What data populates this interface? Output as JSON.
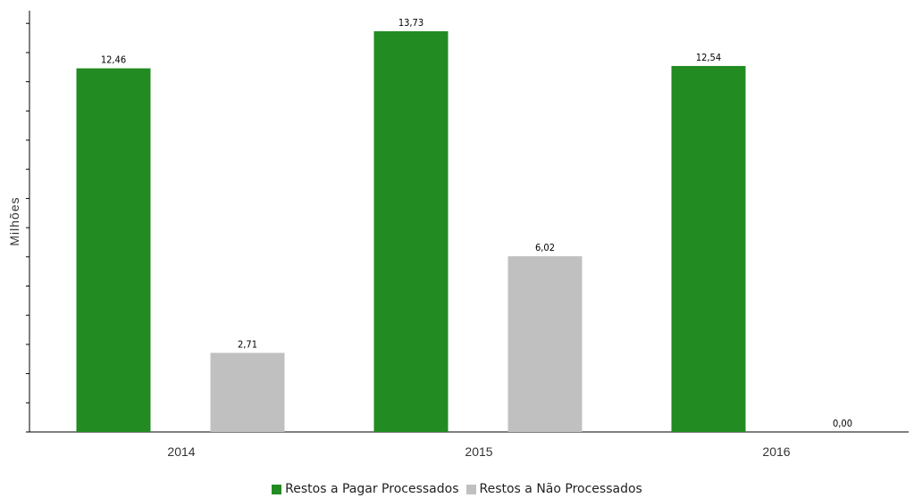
{
  "chart_data": {
    "type": "bar",
    "categories": [
      "2014",
      "2015",
      "2016"
    ],
    "series": [
      {
        "name": "Restos a Pagar Processados",
        "values": [
          12.46,
          13.73,
          12.54
        ],
        "labels": [
          "12,46",
          "13,73",
          "12,54"
        ],
        "color": "#228b22"
      },
      {
        "name": "Restos a Não Processados",
        "values": [
          2.71,
          6.02,
          0.0
        ],
        "labels": [
          "2,71",
          "6,02",
          "0,00"
        ],
        "color": "#c0c0c0"
      }
    ],
    "ylabel": "Milhões",
    "xlabel": "",
    "ylim": [
      0,
      14.5
    ],
    "grid": false,
    "legend": "bottom-center"
  }
}
